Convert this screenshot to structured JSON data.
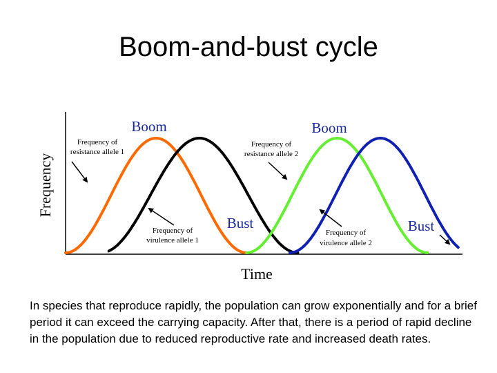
{
  "slide": {
    "title": "Boom-and-bust cycle",
    "caption": "In species that reproduce rapidly, the population can grow exponentially and for a brief period it can exceed the carrying capacity.  After that, there is a period of rapid decline in the population due to reduced reproductive rate and increased death rates."
  },
  "chart_data": {
    "type": "line",
    "title": "",
    "xlabel": "Time",
    "ylabel": "Frequency",
    "xlim": [
      0,
      10
    ],
    "ylim": [
      0,
      1
    ],
    "grid": false,
    "legend": "none",
    "series": [
      {
        "name": "Frequency of resistance allele 1",
        "color": "#ff6a00",
        "style": "solid",
        "peak_x": 2.3,
        "x_start": 0.0,
        "x_end": 4.6
      },
      {
        "name": "Frequency of virulence allele 1",
        "color": "#000000",
        "style": "dotted",
        "peak_x": 3.4,
        "x_start": 1.1,
        "x_end": 5.9
      },
      {
        "name": "Frequency of resistance allele 2",
        "color": "#66ee33",
        "style": "solid",
        "peak_x": 6.9,
        "x_start": 4.6,
        "x_end": 9.2
      },
      {
        "name": "Frequency of virulence allele 2",
        "color": "#1020b0",
        "style": "dotted",
        "peak_x": 8.0,
        "x_start": 5.7,
        "x_end": 10.0
      }
    ],
    "annotations": {
      "boom": "Boom",
      "bust": "Bust",
      "resistance_1": [
        "Frequency of",
        "resistance allele 1"
      ],
      "virulence_1": [
        "Frequency of",
        "virulence allele 1"
      ],
      "resistance_2": [
        "Frequency of",
        "resistance allele 2"
      ],
      "virulence_2": [
        "Frequency of",
        "virulence allele 2"
      ]
    }
  }
}
